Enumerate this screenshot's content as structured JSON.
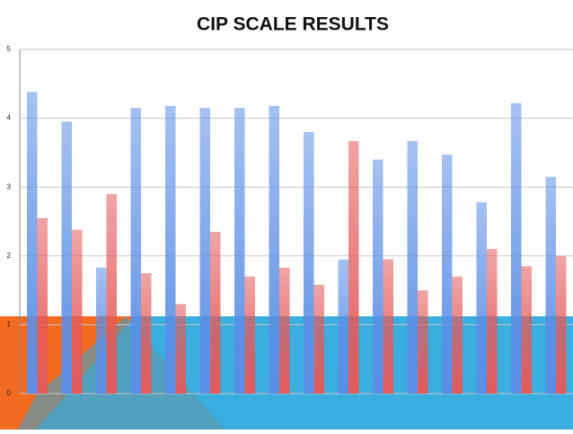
{
  "chart_data": {
    "type": "bar",
    "title": "CIP SCALE RESULTS",
    "categories": [
      null,
      null,
      null,
      null,
      null,
      null,
      null,
      null,
      null,
      null,
      null,
      null,
      null,
      null,
      null,
      null
    ],
    "series": [
      {
        "color": "#5b8ee6",
        "values": [
          4.38,
          3.95,
          1.83,
          4.15,
          4.18,
          4.15,
          4.15,
          4.18,
          3.8,
          1.95,
          3.4,
          3.67,
          3.47,
          2.78,
          4.22,
          3.15
        ]
      },
      {
        "color": "#e45a5a",
        "values": [
          2.55,
          2.38,
          2.9,
          1.75,
          1.3,
          2.35,
          1.7,
          1.83,
          1.58,
          3.67,
          1.95,
          1.5,
          1.7,
          2.1,
          1.85,
          2.0
        ]
      }
    ],
    "ylim": [
      0,
      5
    ],
    "yticks": [
      0,
      1,
      2,
      3,
      4,
      5
    ],
    "grid": true
  }
}
